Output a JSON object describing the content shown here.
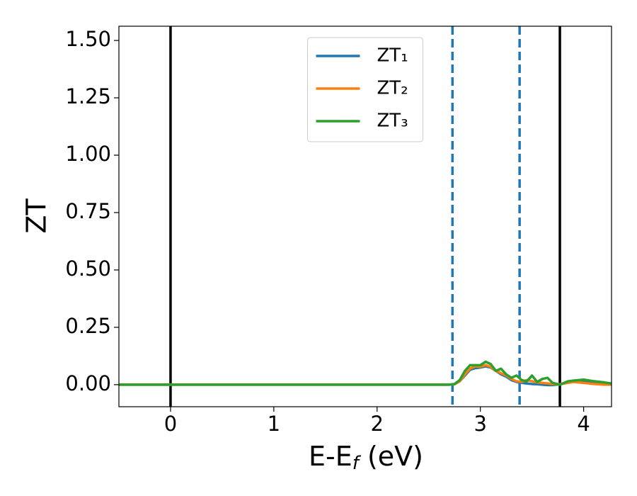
{
  "chart_data": {
    "type": "line",
    "xlabel": [
      "E-E",
      "f",
      " (eV)"
    ],
    "ylabel": "ZT",
    "x": [
      -0.5,
      2.7,
      2.75,
      2.8,
      2.85,
      2.9,
      2.95,
      3.0,
      3.05,
      3.1,
      3.15,
      3.2,
      3.25,
      3.3,
      3.35,
      3.4,
      3.45,
      3.5,
      3.55,
      3.6,
      3.65,
      3.7,
      3.77,
      3.85,
      3.9,
      4.0,
      4.1,
      4.2,
      4.27
    ],
    "series": [
      {
        "name": "ZT₁",
        "color": "#1f77b4",
        "values": [
          0,
          0,
          0.002,
          0.015,
          0.04,
          0.065,
          0.072,
          0.075,
          0.08,
          0.075,
          0.06,
          0.045,
          0.035,
          0.02,
          0.012,
          0.008,
          0.005,
          0.003,
          0.002,
          0.0,
          -0.002,
          -0.002,
          0.002,
          0.01,
          0.015,
          0.015,
          0.01,
          0.007,
          0.005
        ]
      },
      {
        "name": "ZT₂",
        "color": "#ff7f0e",
        "values": [
          0,
          0,
          0.002,
          0.015,
          0.045,
          0.07,
          0.08,
          0.078,
          0.085,
          0.078,
          0.06,
          0.05,
          0.04,
          0.025,
          0.015,
          0.012,
          0.02,
          0.015,
          0.01,
          0.008,
          0.006,
          0.003,
          0.002,
          0.008,
          0.012,
          0.008,
          0.003,
          0.0,
          0.0
        ]
      },
      {
        "name": "ZT₃",
        "color": "#2ca02c",
        "values": [
          0,
          0,
          0.003,
          0.02,
          0.06,
          0.085,
          0.085,
          0.085,
          0.1,
          0.09,
          0.06,
          0.07,
          0.045,
          0.03,
          0.04,
          0.02,
          0.015,
          0.04,
          0.012,
          0.025,
          0.03,
          0.008,
          0.0,
          0.015,
          0.018,
          0.022,
          0.015,
          0.01,
          0.005
        ]
      }
    ],
    "vlines": [
      {
        "x": 0,
        "color": "#000000",
        "style": "solid"
      },
      {
        "x": 3.77,
        "color": "#000000",
        "style": "solid"
      },
      {
        "x": 2.73,
        "color": "#1f77b4",
        "style": "dashed"
      },
      {
        "x": 3.38,
        "color": "#1f77b4",
        "style": "dashed"
      }
    ],
    "xlim": [
      -0.5,
      4.27
    ],
    "ylim": [
      -0.096,
      1.562
    ],
    "xticks": [
      0,
      1,
      2,
      3,
      4
    ],
    "yticks": [
      {
        "value": 0,
        "label": "0.00"
      },
      0.25,
      {
        "value": 0.5,
        "label": "0.50"
      },
      0.75,
      {
        "value": 1,
        "label": "1.00"
      },
      1.25,
      {
        "value": 1.5,
        "label": "1.50"
      }
    ],
    "legend": "upper center"
  }
}
